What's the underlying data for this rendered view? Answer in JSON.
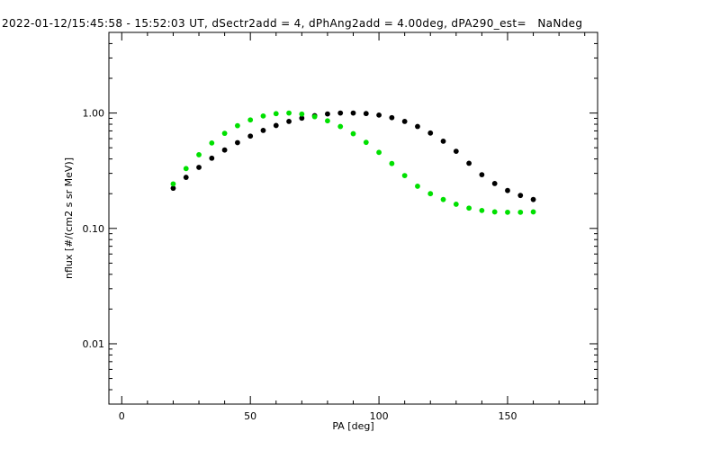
{
  "title": "2022-01-12/15:45:58 - 15:52:03 UT, dSectr2add = 4, dPhAng2add = 4.00deg, dPA290_est=   NaNdeg",
  "chart_data": {
    "type": "scatter",
    "xlabel": "PA [deg]",
    "ylabel": "nflux [#/(cm2 s sr MeV)]",
    "xlim": [
      -5,
      185
    ],
    "ylim": [
      0.003,
      5
    ],
    "yscale": "log",
    "x_ticks": [
      "0",
      "50",
      "100",
      "150"
    ],
    "y_ticks": [
      "0.01",
      "0.10",
      "1.00"
    ],
    "grid": false,
    "legend": "none",
    "series": [
      {
        "color": "#000000",
        "points": [
          [
            20,
            0.223
          ],
          [
            25,
            0.277
          ],
          [
            30,
            0.338
          ],
          [
            35,
            0.406
          ],
          [
            40,
            0.478
          ],
          [
            45,
            0.554
          ],
          [
            50,
            0.631
          ],
          [
            55,
            0.707
          ],
          [
            60,
            0.78
          ],
          [
            65,
            0.846
          ],
          [
            70,
            0.903
          ],
          [
            75,
            0.949
          ],
          [
            80,
            0.982
          ],
          [
            85,
            1.0
          ],
          [
            90,
            1.0
          ],
          [
            95,
            0.99
          ],
          [
            100,
            0.96
          ],
          [
            105,
            0.912
          ],
          [
            110,
            0.846
          ],
          [
            115,
            0.765
          ],
          [
            120,
            0.671
          ],
          [
            125,
            0.57
          ],
          [
            130,
            0.466
          ],
          [
            135,
            0.367
          ],
          [
            140,
            0.292
          ],
          [
            145,
            0.245
          ],
          [
            150,
            0.213
          ],
          [
            155,
            0.193
          ],
          [
            160,
            0.178
          ]
        ]
      },
      {
        "color": "#00e000",
        "points": [
          [
            20,
            0.243
          ],
          [
            25,
            0.33
          ],
          [
            30,
            0.435
          ],
          [
            35,
            0.55
          ],
          [
            40,
            0.667
          ],
          [
            45,
            0.777
          ],
          [
            50,
            0.872
          ],
          [
            55,
            0.943
          ],
          [
            60,
            0.988
          ],
          [
            65,
            1.0
          ],
          [
            70,
            0.98
          ],
          [
            75,
            0.93
          ],
          [
            80,
            0.856
          ],
          [
            85,
            0.764
          ],
          [
            90,
            0.662
          ],
          [
            95,
            0.557
          ],
          [
            100,
            0.456
          ],
          [
            105,
            0.365
          ],
          [
            110,
            0.287
          ],
          [
            115,
            0.232
          ],
          [
            120,
            0.2
          ],
          [
            125,
            0.178
          ],
          [
            130,
            0.162
          ],
          [
            135,
            0.15
          ],
          [
            140,
            0.143
          ],
          [
            145,
            0.139
          ],
          [
            150,
            0.138
          ],
          [
            155,
            0.138
          ],
          [
            160,
            0.139
          ]
        ]
      }
    ]
  }
}
